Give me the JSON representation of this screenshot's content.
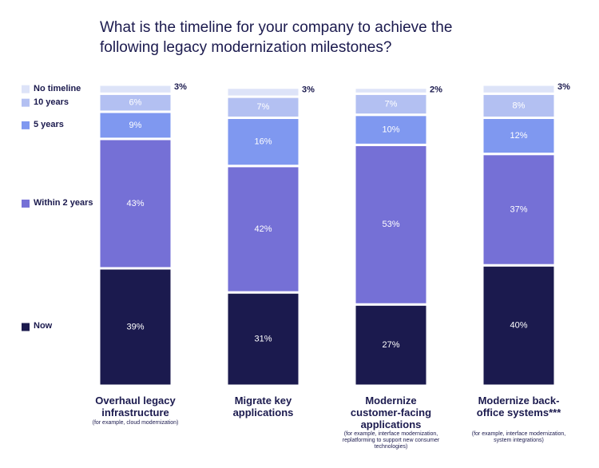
{
  "chart_data": {
    "type": "stacked_bar",
    "title": "What is the timeline for your company to achieve the following legacy modernization milestones?",
    "categories": [
      "Overhaul legacy infrastructure",
      "Migrate key applications",
      "Modernize customer-facing applications",
      "Modernize back-office systems***"
    ],
    "category_notes": [
      "(for example, cloud modernization)",
      null,
      "(for example, interface modernization, replatforming to support new consumer technologies)",
      "(for example, interface modernization, system integrations)"
    ],
    "series": [
      {
        "name": "Now",
        "color": "#1b1a4e",
        "values": [
          39,
          31,
          27,
          40
        ],
        "value_labels": [
          "39%",
          "31%",
          "27%",
          "40%"
        ]
      },
      {
        "name": "Within 2 years",
        "color": "#7570d6",
        "values": [
          43,
          42,
          53,
          37
        ],
        "value_labels": [
          "43%",
          "42%",
          "53%",
          "37%"
        ]
      },
      {
        "name": "5 years",
        "color": "#7f98f0",
        "values": [
          9,
          16,
          10,
          12
        ],
        "value_labels": [
          "9%",
          "16%",
          "10%",
          "12%"
        ]
      },
      {
        "name": "10 years",
        "color": "#b3c0f2",
        "values": [
          6,
          7,
          7,
          8
        ],
        "value_labels": [
          "6%",
          "7%",
          "7%",
          "8%"
        ]
      },
      {
        "name": "No timeline",
        "color": "#dde3f8",
        "values": [
          3,
          3,
          2,
          3
        ],
        "value_labels": [
          "3%",
          "3%",
          "2%",
          "3%"
        ]
      }
    ]
  }
}
